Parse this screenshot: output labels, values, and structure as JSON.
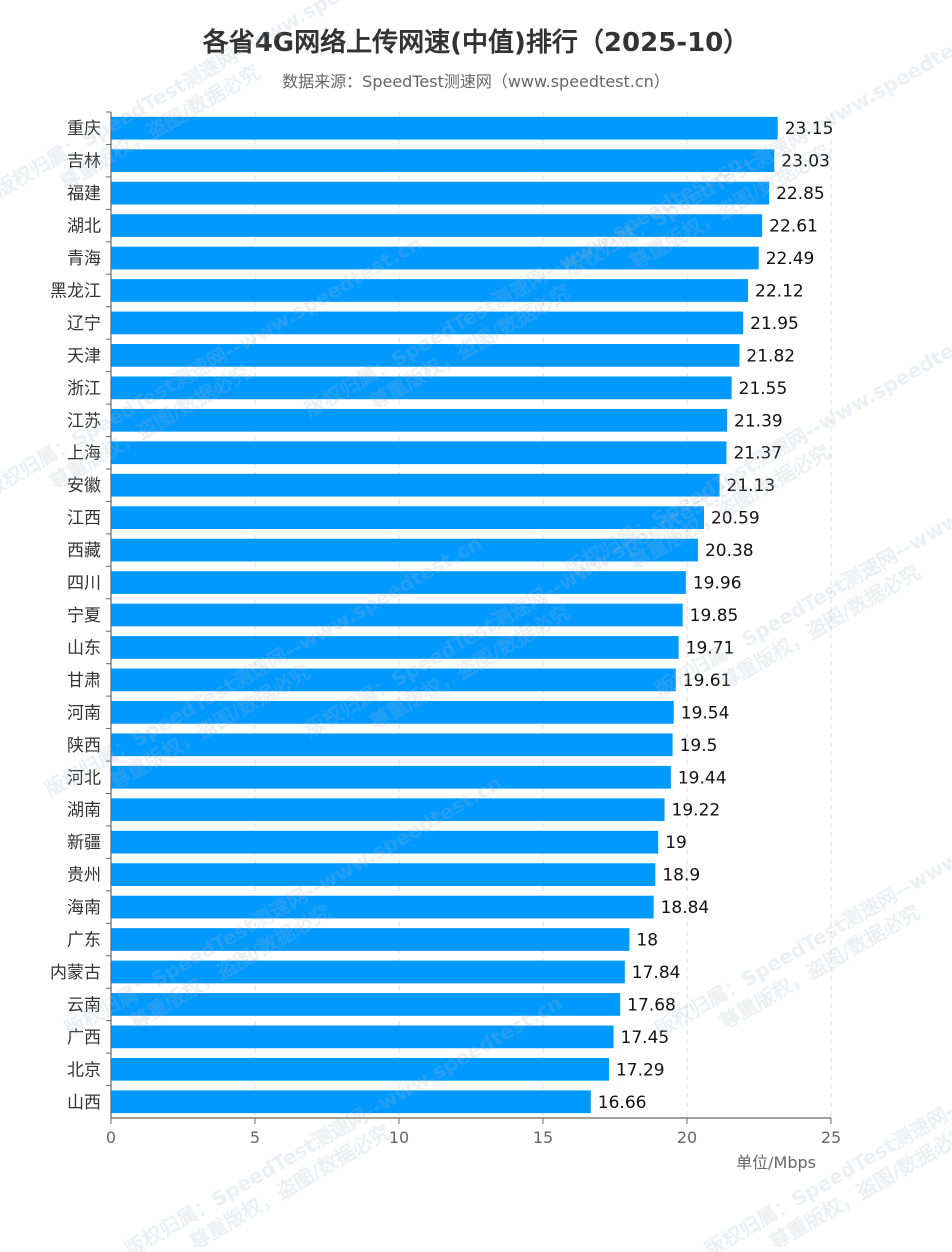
{
  "title": "各省4G网络上传网速(中值)排行（2025-10）",
  "subtitle": "数据来源：SpeedTest测速网（www.speedtest.cn）",
  "unit_label": "单位/Mbps",
  "watermark": {
    "line1": "版权归属：SpeedTest测速网--www.speedtest.cn",
    "line2": "尊重版权，盗图/数据必究"
  },
  "colors": {
    "bar": "#0099ff",
    "axis": "#666666",
    "grid": "#dddddd",
    "text": "#333333"
  },
  "chart_data": {
    "type": "bar",
    "orientation": "horizontal",
    "categories": [
      "重庆",
      "吉林",
      "福建",
      "湖北",
      "青海",
      "黑龙江",
      "辽宁",
      "天津",
      "浙江",
      "江苏",
      "上海",
      "安徽",
      "江西",
      "西藏",
      "四川",
      "宁夏",
      "山东",
      "甘肃",
      "河南",
      "陕西",
      "河北",
      "湖南",
      "新疆",
      "贵州",
      "海南",
      "广东",
      "内蒙古",
      "云南",
      "广西",
      "北京",
      "山西"
    ],
    "values": [
      23.15,
      23.03,
      22.85,
      22.61,
      22.49,
      22.12,
      21.95,
      21.82,
      21.55,
      21.39,
      21.37,
      21.13,
      20.59,
      20.38,
      19.96,
      19.85,
      19.71,
      19.61,
      19.54,
      19.5,
      19.44,
      19.22,
      19,
      18.9,
      18.84,
      18,
      17.84,
      17.68,
      17.45,
      17.29,
      16.66
    ],
    "xlim": [
      0,
      25
    ],
    "xticks": [
      0,
      5,
      10,
      15,
      20,
      25
    ],
    "grid": "vertical dashed",
    "data_labels": true
  }
}
